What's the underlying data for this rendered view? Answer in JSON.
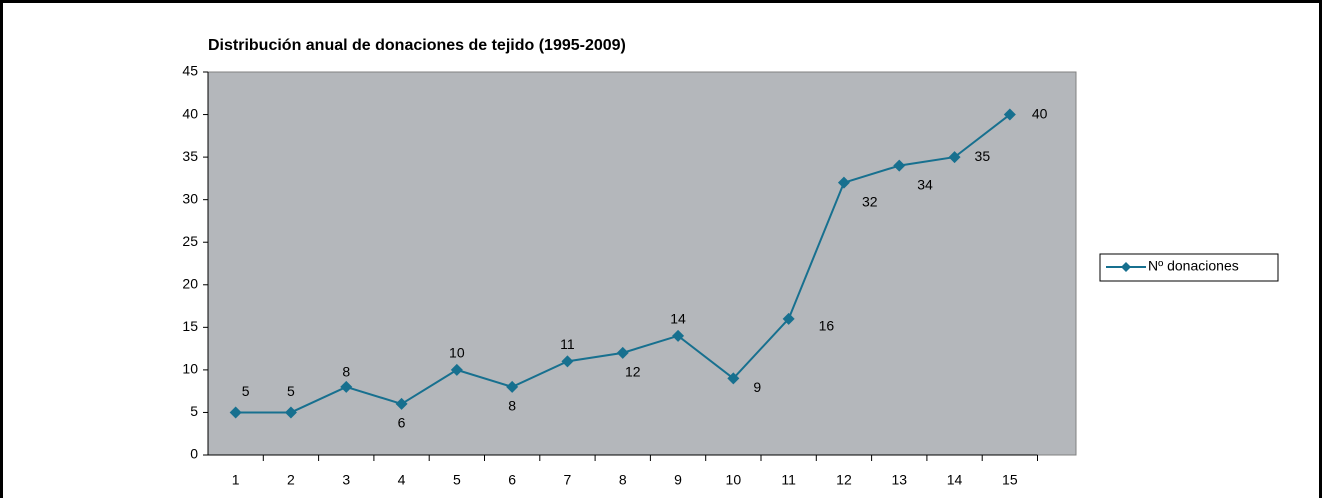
{
  "chart_data": {
    "type": "line",
    "title": "Distribución anual de donaciones de tejido (1995-2009)",
    "categories": [
      "1",
      "2",
      "3",
      "4",
      "5",
      "6",
      "7",
      "8",
      "9",
      "10",
      "11",
      "12",
      "13",
      "14",
      "15"
    ],
    "series": [
      {
        "name": "Nº donaciones",
        "color": "#17708f",
        "values": [
          5,
          5,
          8,
          6,
          10,
          8,
          11,
          12,
          14,
          9,
          16,
          32,
          34,
          35,
          40
        ]
      }
    ],
    "ylim": [
      0,
      45
    ],
    "yticks": [
      0,
      5,
      10,
      15,
      20,
      25,
      30,
      35,
      40,
      45
    ],
    "grid": false,
    "legend": "right",
    "data_labels": true
  }
}
